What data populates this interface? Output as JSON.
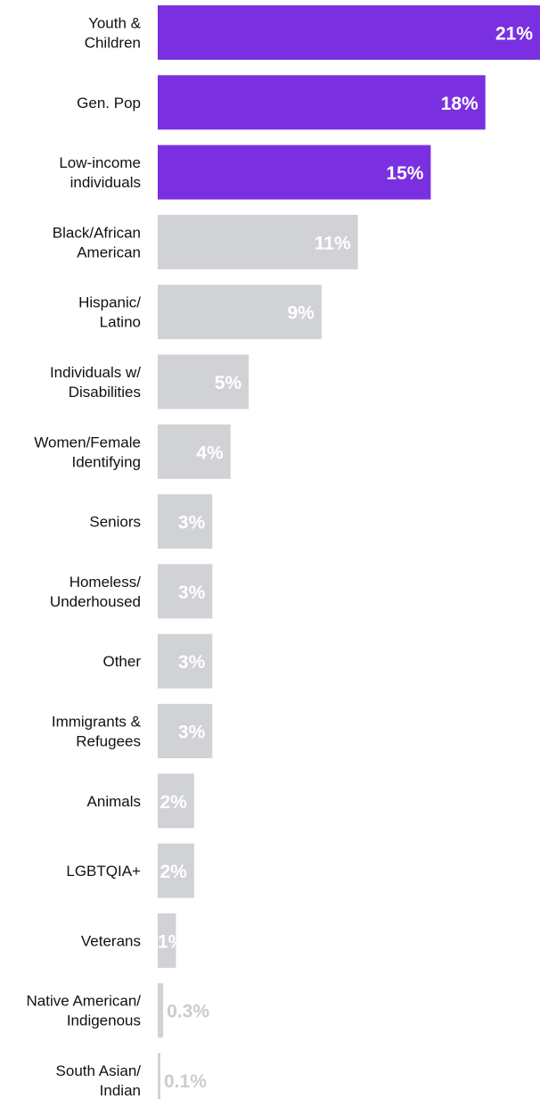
{
  "chart_data": {
    "type": "bar",
    "orientation": "horizontal",
    "categories": [
      [
        "Youth &",
        "Children"
      ],
      [
        "Gen. Pop"
      ],
      [
        "Low-income",
        "individuals"
      ],
      [
        "Black/African",
        "American"
      ],
      [
        "Hispanic/",
        "Latino"
      ],
      [
        "Individuals w/",
        "Disabilities"
      ],
      [
        "Women/Female",
        "Identifying"
      ],
      [
        "Seniors"
      ],
      [
        "Homeless/",
        "Underhoused"
      ],
      [
        "Other"
      ],
      [
        "Immigrants &",
        "Refugees"
      ],
      [
        "Animals"
      ],
      [
        "LGBTQIA+"
      ],
      [
        "Veterans"
      ],
      [
        "Native American/",
        "Indigenous"
      ],
      [
        "South Asian/",
        "Indian"
      ]
    ],
    "values": [
      21,
      18,
      15,
      11,
      9,
      5,
      4,
      3,
      3,
      3,
      3,
      2,
      2,
      1,
      0.3,
      0.1
    ],
    "value_labels": [
      "21%",
      "18%",
      "15%",
      "11%",
      "9%",
      "5%",
      "4%",
      "3%",
      "3%",
      "3%",
      "3%",
      "2%",
      "2%",
      "1%",
      "0.3%",
      "0.1%"
    ],
    "highlight_count": 3,
    "colors": {
      "highlight": "#7a30e0",
      "default": "#d0d2d5",
      "label_on_bar": "#ffffff",
      "label_outside": "#cccccc",
      "category_text": "#111111"
    },
    "title": "",
    "xlabel": "",
    "ylabel": "",
    "grid": false,
    "legend": false
  }
}
